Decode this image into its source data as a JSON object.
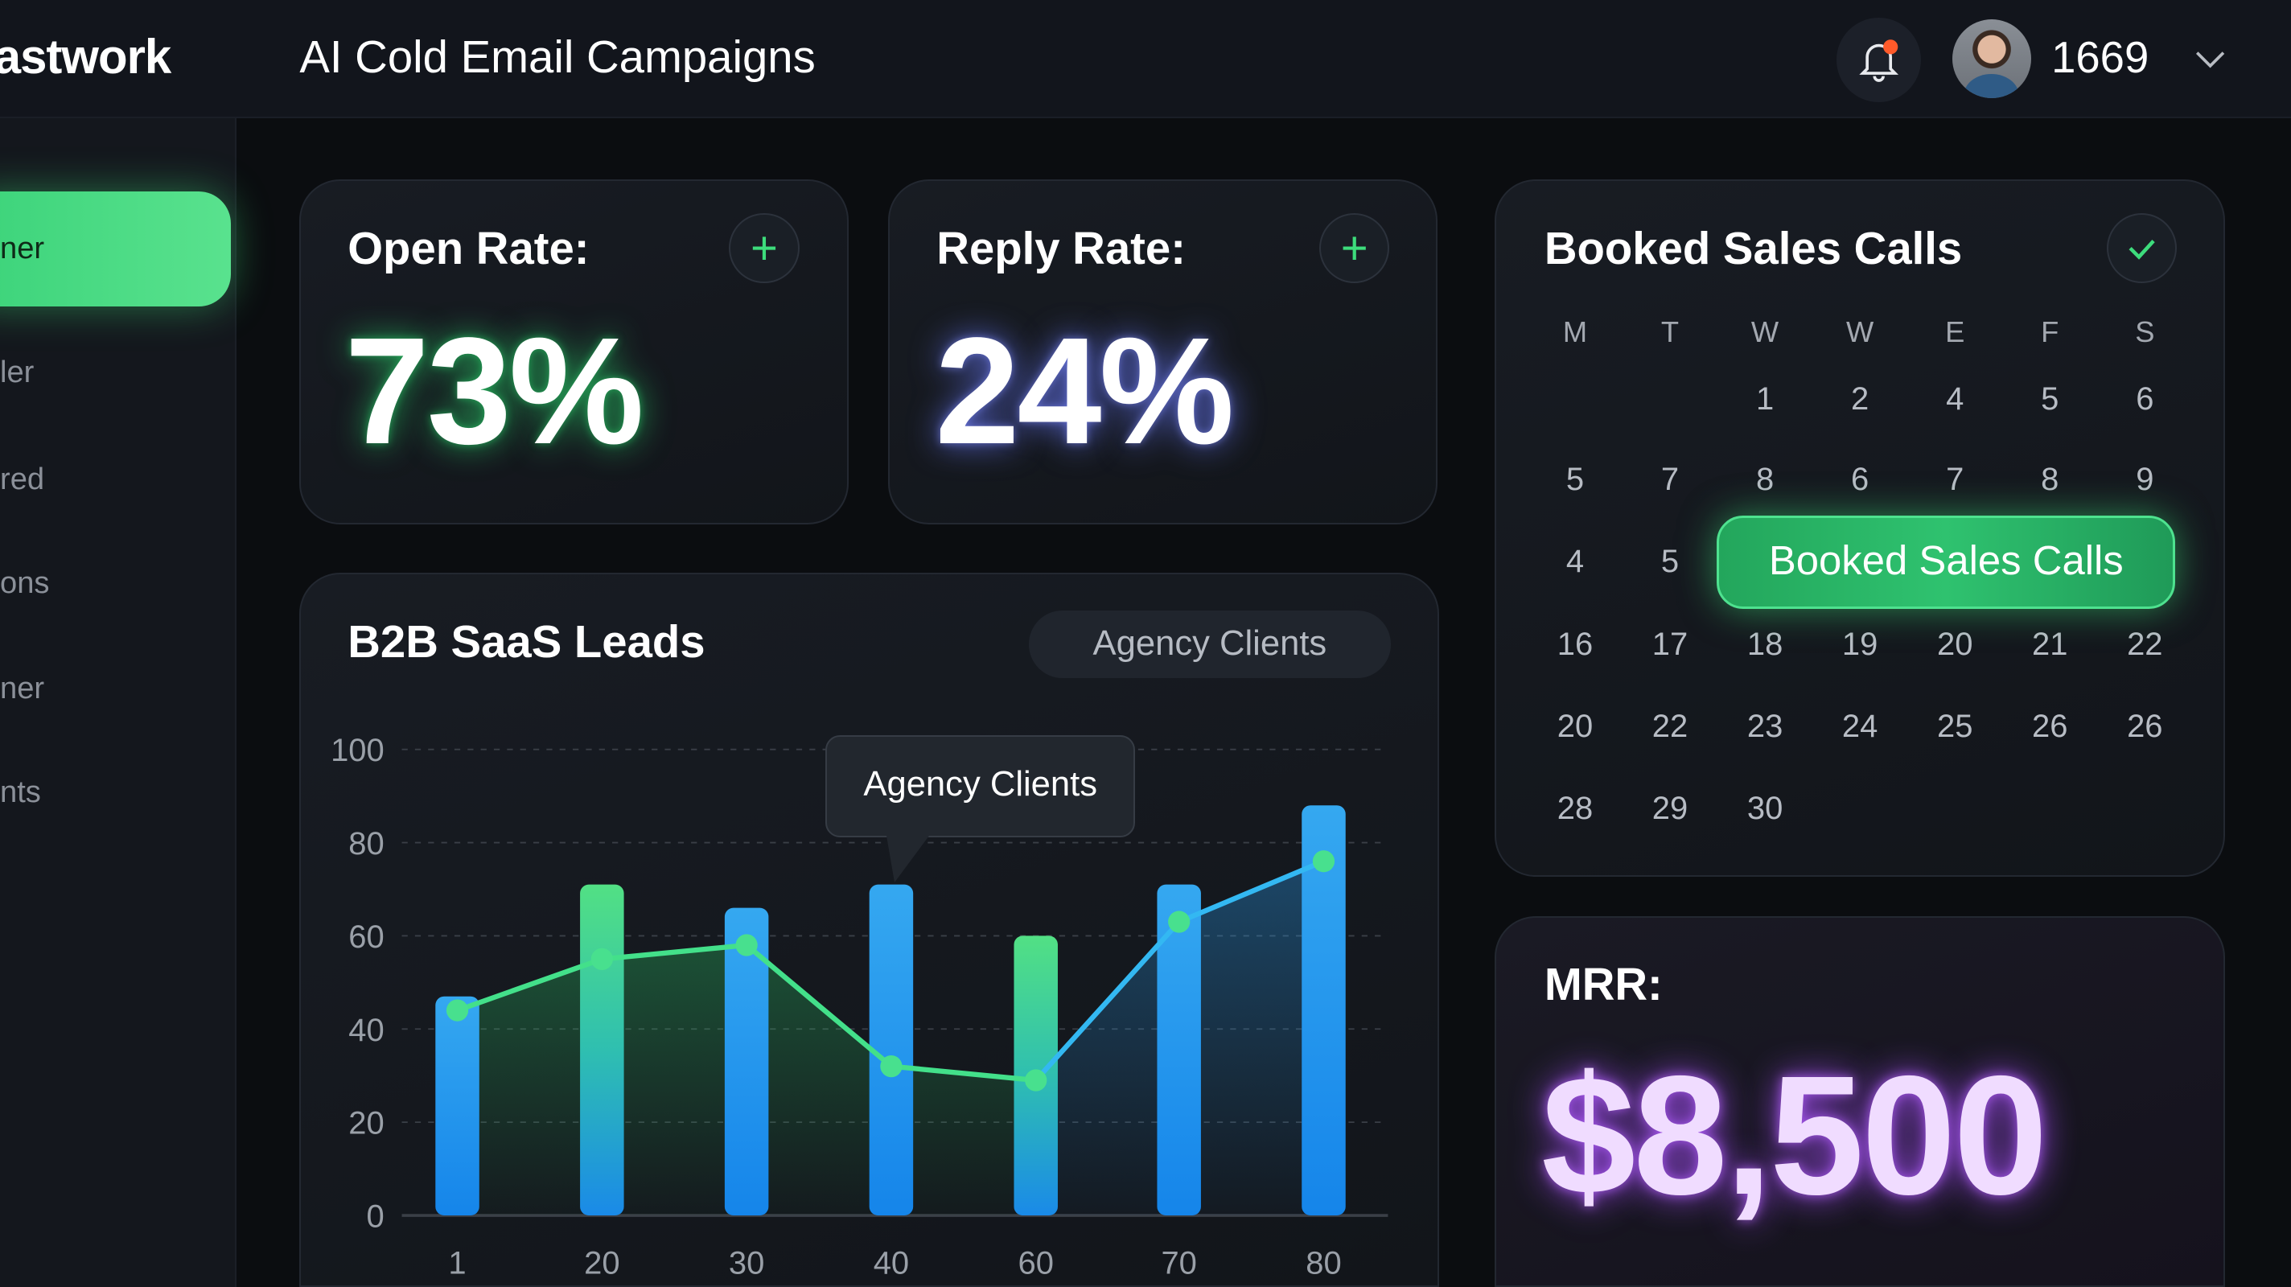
{
  "header": {
    "logo": "astwork",
    "title": "AI Cold Email Campaigns",
    "user_id": "1669",
    "icons": [
      "bell-icon",
      "avatar",
      "chevron-down-icon"
    ],
    "notification_dot_color": "#ff5a2a"
  },
  "sidebar": {
    "items": [
      {
        "label": "ner",
        "active": true
      },
      {
        "label": "ler"
      },
      {
        "label": "red"
      },
      {
        "label": "ons"
      },
      {
        "label": "ner"
      },
      {
        "label": "nts"
      }
    ],
    "accent": "#3cd37a"
  },
  "open_rate": {
    "title": "Open Rate:",
    "value": "73%",
    "glow": "#2bd26b"
  },
  "reply_rate": {
    "title": "Reply Rate:",
    "value": "24%",
    "glow": "#6c7cff"
  },
  "calendar": {
    "title": "Booked Sales Calls",
    "weekdays": [
      "M",
      "T",
      "W",
      "W",
      "E",
      "F",
      "S"
    ],
    "rows": [
      [
        "",
        "",
        "1",
        "2",
        "4",
        "5",
        "6"
      ],
      [
        "5",
        "7",
        "8",
        "6",
        "7",
        "8",
        "9"
      ],
      [
        "4",
        "5",
        "",
        "",
        "",
        "",
        ""
      ],
      [
        "16",
        "17",
        "18",
        "19",
        "20",
        "21",
        "22"
      ],
      [
        "20",
        "22",
        "23",
        "24",
        "25",
        "26",
        "26"
      ],
      [
        "28",
        "29",
        "30",
        "",
        "",
        "",
        ""
      ]
    ],
    "highlight_label": "Booked Sales Calls"
  },
  "mrr": {
    "title": "MRR:",
    "value": "$8,500",
    "color": "#e9d2ff"
  },
  "chart_card": {
    "title": "B2B SaaS Leads",
    "segment_label": "Agency Clients",
    "tooltip": "Agency Clients"
  },
  "chart_data": {
    "type": "bar",
    "title": "B2B SaaS Leads",
    "categories": [
      "1",
      "20",
      "30",
      "40",
      "60",
      "70",
      "80"
    ],
    "ylim": [
      0,
      100
    ],
    "yticks": [
      "0",
      "20",
      "40",
      "60",
      "80",
      "100"
    ],
    "grid": true,
    "series": [
      {
        "type": "bar",
        "values": [
          47,
          71,
          66,
          71,
          60,
          71,
          88
        ],
        "colors": [
          "#2fa3ee",
          "#4fdc84",
          "#2fa3ee",
          "#2fa3ee",
          "#4fdc84",
          "#2fa3ee",
          "#2fa3ee"
        ]
      },
      {
        "type": "line",
        "values": [
          44,
          55,
          58,
          32,
          29,
          63,
          76
        ],
        "colors": [
          "#43e08a",
          "#43e08a",
          "#43e08a",
          "#43e08a",
          "#43e08a",
          "#33b8f2",
          "#33b8f2"
        ]
      }
    ]
  }
}
